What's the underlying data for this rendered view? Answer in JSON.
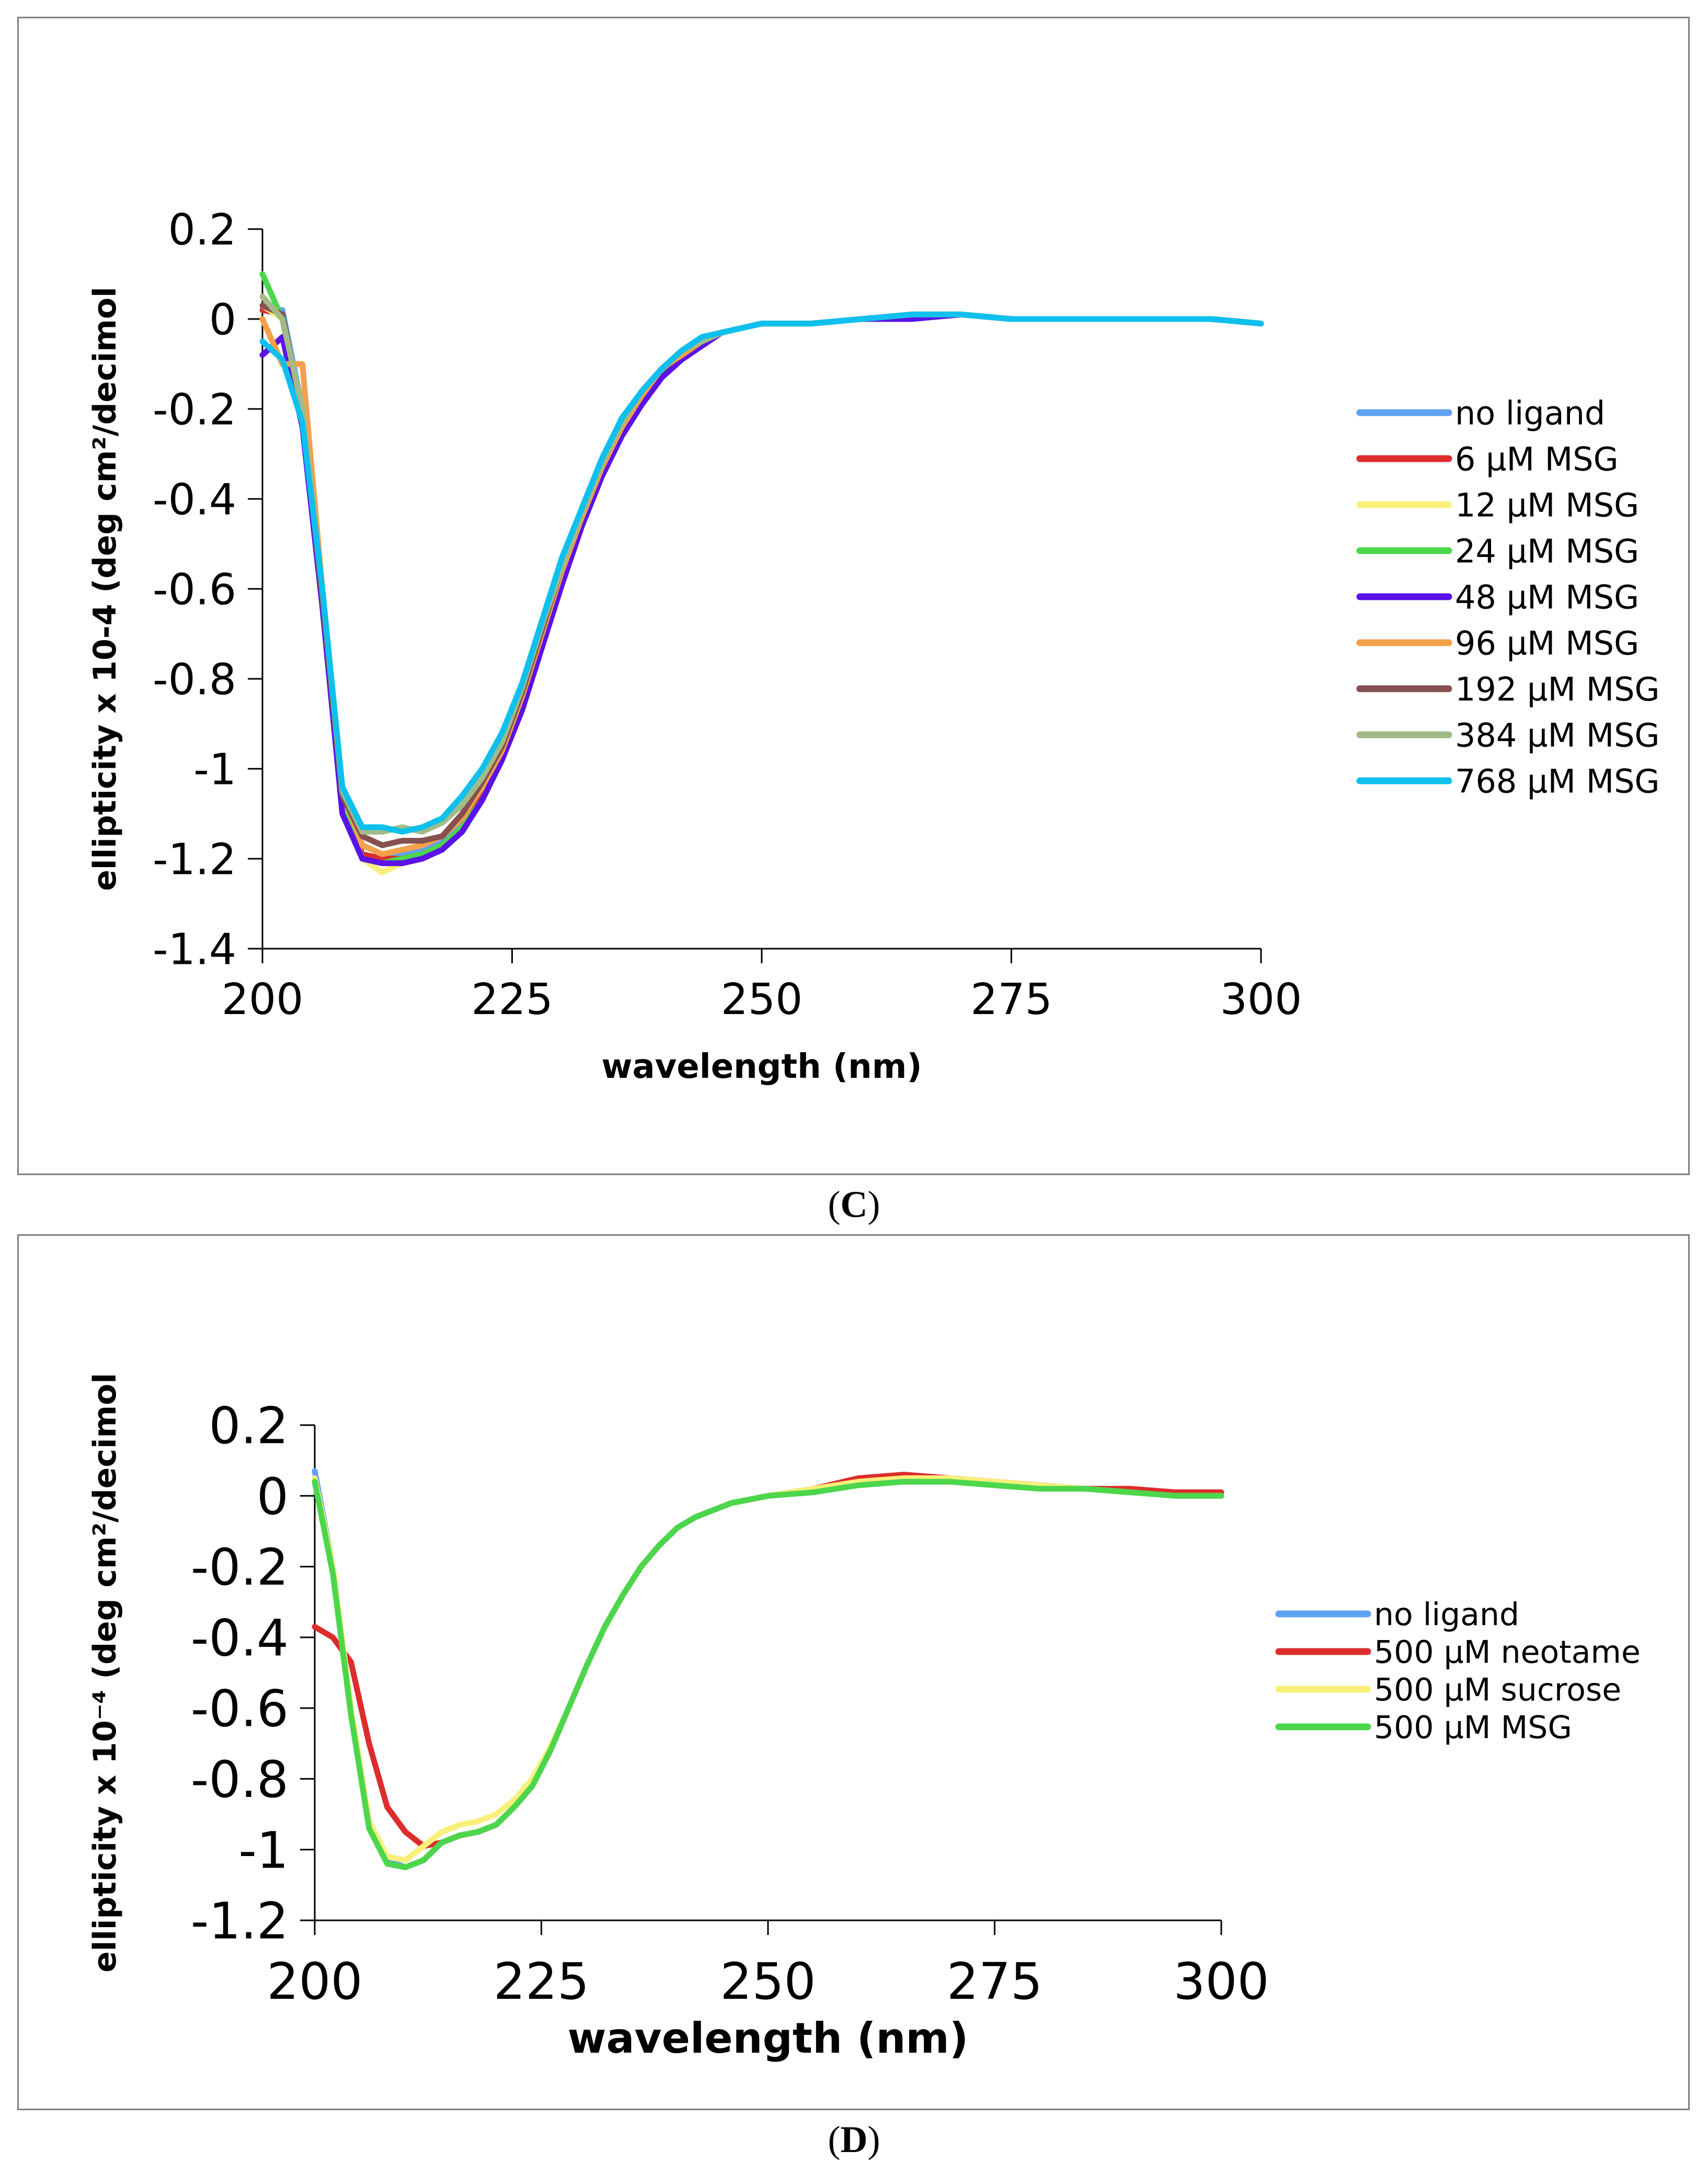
{
  "chart_data": [
    {
      "type": "line",
      "panel_label": "C",
      "xlabel": "wavelength (nm)",
      "ylabel": "ellipticity x 10-4 (deg cm²/decimol",
      "xlim": [
        200,
        300
      ],
      "ylim": [
        -1.4,
        0.2
      ],
      "x_ticks": [
        "200",
        "225",
        "250",
        "275",
        "300"
      ],
      "y_ticks": [
        "0.2",
        "0",
        "-0.2",
        "-0.4",
        "-0.6",
        "-0.8",
        "-1",
        "-1.2",
        "-1.4"
      ],
      "grid": false,
      "legend_position": "right",
      "x": [
        200,
        202,
        204,
        206,
        208,
        210,
        212,
        214,
        216,
        218,
        220,
        222,
        224,
        226,
        228,
        230,
        232,
        234,
        236,
        238,
        240,
        242,
        244,
        246,
        248,
        250,
        255,
        260,
        265,
        270,
        275,
        280,
        285,
        290,
        295,
        300
      ],
      "series": [
        {
          "name": "no ligand",
          "color": "#5fa2f0",
          "values": [
            0.02,
            0.02,
            -0.2,
            -0.6,
            -1.05,
            -1.17,
            -1.19,
            -1.19,
            -1.18,
            -1.16,
            -1.12,
            -1.05,
            -0.96,
            -0.84,
            -0.7,
            -0.56,
            -0.44,
            -0.33,
            -0.24,
            -0.17,
            -0.11,
            -0.08,
            -0.05,
            -0.03,
            -0.02,
            -0.01,
            -0.01,
            0.0,
            0.01,
            0.01,
            0.0,
            0.0,
            0.0,
            0.0,
            0.0,
            -0.01
          ]
        },
        {
          "name": "6 µM MSG",
          "color": "#dd2c2c",
          "values": [
            0.02,
            0.01,
            -0.22,
            -0.62,
            -1.07,
            -1.19,
            -1.2,
            -1.2,
            -1.19,
            -1.17,
            -1.13,
            -1.06,
            -0.97,
            -0.85,
            -0.71,
            -0.57,
            -0.45,
            -0.34,
            -0.25,
            -0.18,
            -0.12,
            -0.08,
            -0.05,
            -0.03,
            -0.02,
            -0.01,
            -0.01,
            0.0,
            0.01,
            0.01,
            0.0,
            0.0,
            0.0,
            0.0,
            0.0,
            -0.01
          ]
        },
        {
          "name": "12 µM MSG",
          "color": "#f8f07a",
          "values": [
            0.03,
            0.0,
            -0.22,
            -0.63,
            -1.08,
            -1.2,
            -1.23,
            -1.21,
            -1.2,
            -1.17,
            -1.14,
            -1.07,
            -0.97,
            -0.85,
            -0.71,
            -0.57,
            -0.45,
            -0.34,
            -0.25,
            -0.18,
            -0.12,
            -0.08,
            -0.05,
            -0.03,
            -0.02,
            -0.01,
            -0.01,
            0.0,
            0.01,
            0.01,
            0.0,
            0.0,
            0.0,
            0.0,
            0.0,
            -0.01
          ]
        },
        {
          "name": "24 µM MSG",
          "color": "#4cd64c",
          "values": [
            0.1,
            0.0,
            -0.23,
            -0.64,
            -1.09,
            -1.2,
            -1.21,
            -1.2,
            -1.19,
            -1.17,
            -1.13,
            -1.07,
            -0.98,
            -0.86,
            -0.72,
            -0.58,
            -0.45,
            -0.34,
            -0.25,
            -0.18,
            -0.12,
            -0.08,
            -0.05,
            -0.03,
            -0.02,
            -0.01,
            -0.01,
            0.0,
            0.01,
            0.01,
            0.0,
            0.0,
            0.0,
            0.0,
            0.0,
            -0.01
          ]
        },
        {
          "name": "48 µM MSG",
          "color": "#5a12e6",
          "values": [
            -0.08,
            -0.04,
            -0.24,
            -0.64,
            -1.1,
            -1.2,
            -1.21,
            -1.21,
            -1.2,
            -1.18,
            -1.14,
            -1.07,
            -0.98,
            -0.87,
            -0.73,
            -0.59,
            -0.46,
            -0.35,
            -0.26,
            -0.19,
            -0.13,
            -0.09,
            -0.06,
            -0.03,
            -0.02,
            -0.01,
            -0.01,
            0.0,
            0.0,
            0.01,
            0.0,
            0.0,
            0.0,
            0.0,
            0.0,
            -0.01
          ]
        },
        {
          "name": "96 µM MSG",
          "color": "#f5a04a",
          "values": [
            0.0,
            -0.1,
            -0.1,
            -0.6,
            -1.05,
            -1.17,
            -1.19,
            -1.18,
            -1.17,
            -1.15,
            -1.11,
            -1.04,
            -0.96,
            -0.84,
            -0.7,
            -0.56,
            -0.44,
            -0.33,
            -0.24,
            -0.17,
            -0.11,
            -0.08,
            -0.05,
            -0.03,
            -0.02,
            -0.01,
            -0.01,
            0.0,
            0.01,
            0.01,
            0.0,
            0.0,
            0.0,
            0.0,
            0.0,
            -0.01
          ]
        },
        {
          "name": "192 µM MSG",
          "color": "#85504e",
          "values": [
            0.03,
            0.01,
            -0.21,
            -0.62,
            -1.06,
            -1.15,
            -1.17,
            -1.16,
            -1.16,
            -1.15,
            -1.1,
            -1.03,
            -0.95,
            -0.83,
            -0.69,
            -0.55,
            -0.43,
            -0.32,
            -0.23,
            -0.16,
            -0.11,
            -0.07,
            -0.05,
            -0.03,
            -0.02,
            -0.01,
            -0.01,
            0.0,
            0.01,
            0.01,
            0.0,
            0.0,
            0.0,
            0.0,
            0.0,
            -0.01
          ]
        },
        {
          "name": "384 µM MSG",
          "color": "#a0bb88",
          "values": [
            0.05,
            0.0,
            -0.2,
            -0.6,
            -1.05,
            -1.14,
            -1.14,
            -1.13,
            -1.14,
            -1.12,
            -1.08,
            -1.02,
            -0.94,
            -0.82,
            -0.68,
            -0.55,
            -0.43,
            -0.32,
            -0.23,
            -0.16,
            -0.11,
            -0.07,
            -0.05,
            -0.03,
            -0.02,
            -0.01,
            -0.01,
            0.0,
            0.01,
            0.01,
            0.0,
            0.0,
            0.0,
            0.0,
            0.0,
            -0.01
          ]
        },
        {
          "name": "768 µM MSG",
          "color": "#0ec0ee",
          "values": [
            -0.05,
            -0.09,
            -0.23,
            -0.6,
            -1.04,
            -1.13,
            -1.13,
            -1.14,
            -1.13,
            -1.11,
            -1.06,
            -1.0,
            -0.92,
            -0.81,
            -0.67,
            -0.53,
            -0.42,
            -0.31,
            -0.22,
            -0.16,
            -0.11,
            -0.07,
            -0.04,
            -0.03,
            -0.02,
            -0.01,
            -0.01,
            0.0,
            0.01,
            0.01,
            0.0,
            0.0,
            0.0,
            0.0,
            0.0,
            -0.01
          ]
        }
      ]
    },
    {
      "type": "line",
      "panel_label": "D",
      "xlabel": "wavelength (nm)",
      "ylabel": "ellipticity x 10⁻⁴ (deg cm²/decimol",
      "xlim": [
        200,
        300
      ],
      "ylim": [
        -1.2,
        0.2
      ],
      "x_ticks": [
        "200",
        "225",
        "250",
        "275",
        "300"
      ],
      "y_ticks": [
        "0.2",
        "0",
        "-0.2",
        "-0.4",
        "-0.6",
        "-0.8",
        "-1",
        "-1.2"
      ],
      "grid": false,
      "legend_position": "right",
      "x": [
        200,
        202,
        204,
        206,
        208,
        210,
        212,
        214,
        216,
        218,
        220,
        222,
        224,
        226,
        228,
        230,
        232,
        234,
        236,
        238,
        240,
        242,
        244,
        246,
        248,
        250,
        255,
        260,
        265,
        270,
        275,
        280,
        285,
        290,
        295,
        300
      ],
      "series": [
        {
          "name": "no ligand",
          "color": "#5fa2f0",
          "values": [
            0.07,
            -0.2,
            -0.6,
            -0.92,
            -1.03,
            -1.05,
            -1.03,
            -0.98,
            -0.96,
            -0.95,
            -0.93,
            -0.88,
            -0.82,
            -0.72,
            -0.6,
            -0.48,
            -0.37,
            -0.28,
            -0.2,
            -0.14,
            -0.09,
            -0.06,
            -0.04,
            -0.02,
            -0.01,
            0.0,
            0.02,
            0.04,
            0.05,
            0.05,
            0.04,
            0.03,
            0.02,
            0.01,
            0.0,
            0.0
          ]
        },
        {
          "name": "500 µM neotame",
          "color": "#dd2c2c",
          "values": [
            -0.37,
            -0.4,
            -0.47,
            -0.7,
            -0.88,
            -0.95,
            -0.99,
            -0.98,
            -0.96,
            -0.95,
            -0.93,
            -0.88,
            -0.82,
            -0.72,
            -0.6,
            -0.48,
            -0.37,
            -0.28,
            -0.2,
            -0.14,
            -0.09,
            -0.06,
            -0.04,
            -0.02,
            -0.01,
            0.0,
            0.02,
            0.05,
            0.06,
            0.05,
            0.04,
            0.03,
            0.02,
            0.02,
            0.01,
            0.01
          ]
        },
        {
          "name": "500 µM sucrose",
          "color": "#f8f07a",
          "values": [
            0.05,
            -0.2,
            -0.6,
            -0.92,
            -1.02,
            -1.03,
            -0.99,
            -0.95,
            -0.93,
            -0.92,
            -0.9,
            -0.86,
            -0.8,
            -0.71,
            -0.6,
            -0.48,
            -0.37,
            -0.28,
            -0.2,
            -0.14,
            -0.09,
            -0.06,
            -0.04,
            -0.02,
            -0.01,
            0.0,
            0.02,
            0.04,
            0.05,
            0.05,
            0.04,
            0.03,
            0.02,
            0.01,
            0.0,
            0.0
          ]
        },
        {
          "name": "500 µM MSG",
          "color": "#4cd64c",
          "values": [
            0.04,
            -0.22,
            -0.62,
            -0.94,
            -1.04,
            -1.05,
            -1.03,
            -0.98,
            -0.96,
            -0.95,
            -0.93,
            -0.88,
            -0.82,
            -0.72,
            -0.6,
            -0.48,
            -0.37,
            -0.28,
            -0.2,
            -0.14,
            -0.09,
            -0.06,
            -0.04,
            -0.02,
            -0.01,
            0.0,
            0.01,
            0.03,
            0.04,
            0.04,
            0.03,
            0.02,
            0.02,
            0.01,
            0.0,
            0.0
          ]
        }
      ]
    }
  ]
}
